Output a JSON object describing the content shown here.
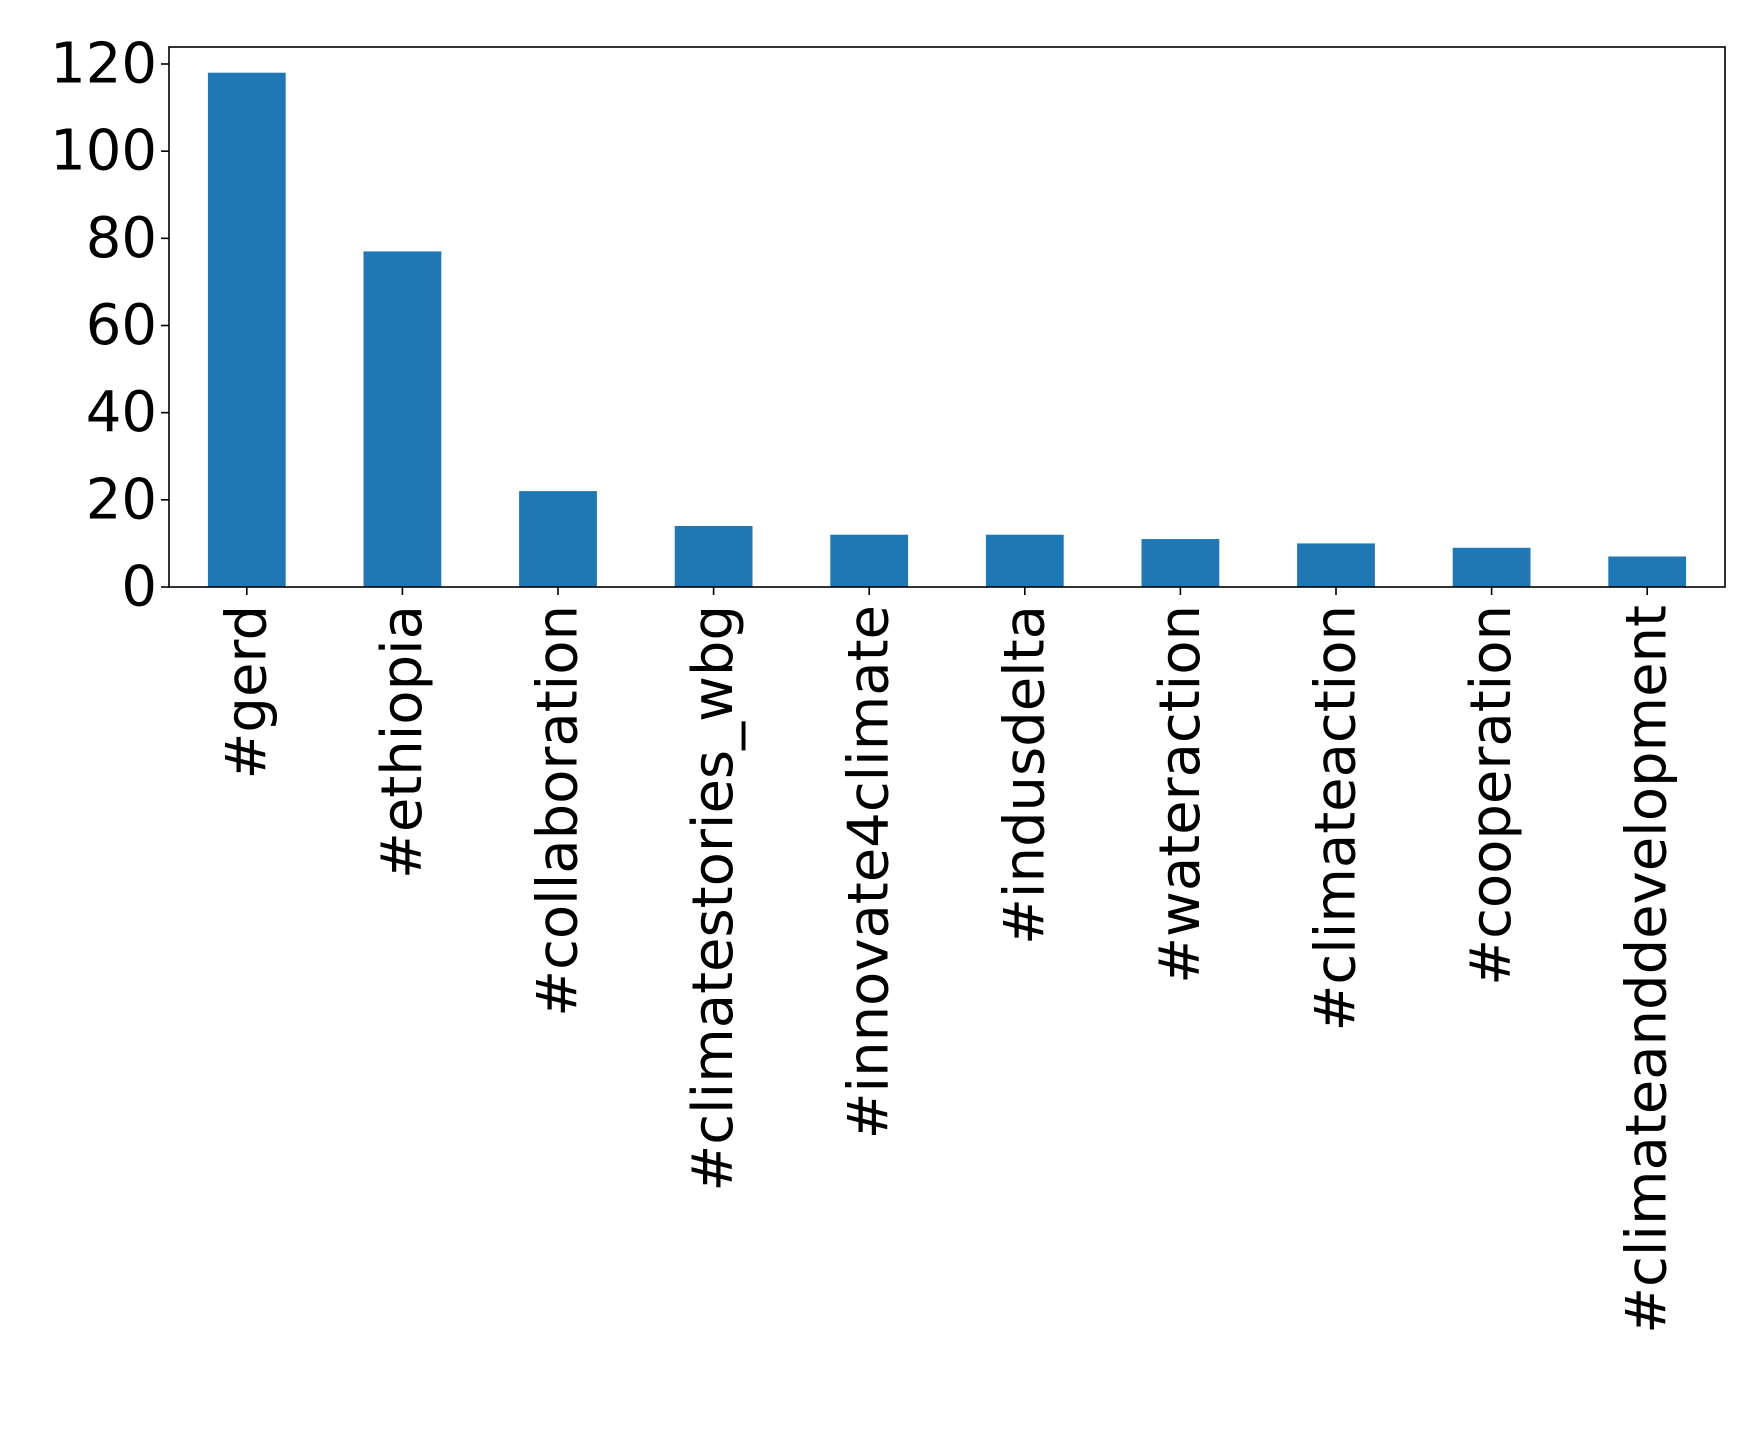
{
  "chart_data": {
    "type": "bar",
    "categories": [
      "#gerd",
      "#ethiopia",
      "#collaboration",
      "#climatestories_wbg",
      "#innovate4climate",
      "#indusdelta",
      "#wateraction",
      "#climateaction",
      "#cooperation",
      "#climateanddevelopment"
    ],
    "values": [
      118,
      77,
      22,
      14,
      12,
      12,
      11,
      10,
      9,
      7
    ],
    "y_ticks": [
      0,
      20,
      40,
      60,
      80,
      100,
      120
    ],
    "ylim": [
      0,
      123.9
    ],
    "title": "",
    "xlabel": "",
    "ylabel": "",
    "grid": false,
    "legend": "none",
    "bar_color": "#1f77b4",
    "x_tick_rotation": "vertical"
  }
}
